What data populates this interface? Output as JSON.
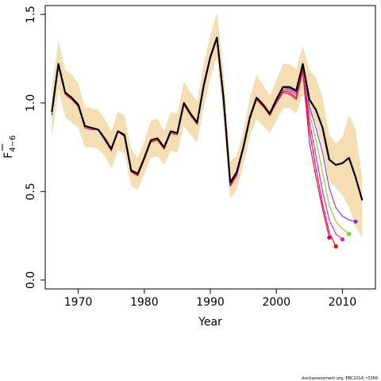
{
  "chart_data": {
    "type": "line",
    "xlabel": "Year",
    "ylabel_main": "F",
    "ylabel_sub": "4−6",
    "xlim": [
      1965,
      2015
    ],
    "ylim": [
      -0.05,
      1.55
    ],
    "x_ticks": [
      1970,
      1980,
      1990,
      2000,
      2010
    ],
    "y_ticks": [
      0.0,
      0.5,
      1.0,
      1.5
    ],
    "y_tick_labels": [
      "0.0",
      "0.5",
      "1.0",
      "1.5"
    ],
    "grid": false,
    "footer": "stockassessment.org, EBC2014, r3366",
    "band": {
      "color": "#f5deb3",
      "x": [
        1966,
        1967,
        1968,
        1969,
        1970,
        1971,
        1972,
        1973,
        1974,
        1975,
        1976,
        1977,
        1978,
        1979,
        1980,
        1981,
        1982,
        1983,
        1984,
        1985,
        1986,
        1987,
        1988,
        1989,
        1990,
        1991,
        1992,
        1993,
        1994,
        1995,
        1996,
        1997,
        1998,
        1999,
        2000,
        2001,
        2002,
        2003,
        2004,
        2005,
        2006,
        2007,
        2008,
        2009,
        2010,
        2011,
        2012,
        2013
      ],
      "upper": [
        1.08,
        1.35,
        1.19,
        1.16,
        1.11,
        0.98,
        0.97,
        0.96,
        0.91,
        0.84,
        0.95,
        0.93,
        0.74,
        0.69,
        0.78,
        0.9,
        0.91,
        0.84,
        0.95,
        0.94,
        1.12,
        1.06,
        1.01,
        1.22,
        1.38,
        1.51,
        1.18,
        0.67,
        0.7,
        0.84,
        1.03,
        1.16,
        1.1,
        1.04,
        1.13,
        1.22,
        1.22,
        1.19,
        1.32,
        1.19,
        1.14,
        1.03,
        0.82,
        0.77,
        0.81,
        0.93,
        0.85,
        0.57
      ],
      "lower": [
        0.8,
        1.08,
        0.92,
        0.89,
        0.86,
        0.75,
        0.75,
        0.74,
        0.7,
        0.63,
        0.73,
        0.72,
        0.53,
        0.51,
        0.6,
        0.69,
        0.7,
        0.65,
        0.73,
        0.72,
        0.87,
        0.82,
        0.78,
        0.98,
        1.14,
        1.26,
        0.9,
        0.46,
        0.51,
        0.65,
        0.81,
        0.91,
        0.87,
        0.83,
        0.9,
        0.97,
        0.97,
        0.94,
        1.05,
        0.94,
        0.89,
        0.76,
        0.56,
        0.52,
        0.48,
        0.41,
        0.3,
        0.24
      ]
    },
    "series": [
      {
        "color": "#000000",
        "width": 2.2,
        "end_marker": false,
        "x": [
          1966,
          1967,
          1968,
          1969,
          1970,
          1971,
          1972,
          1973,
          1974,
          1975,
          1976,
          1977,
          1978,
          1979,
          1980,
          1981,
          1982,
          1983,
          1984,
          1985,
          1986,
          1987,
          1988,
          1989,
          1990,
          1991,
          1992,
          1993,
          1994,
          1995,
          1996,
          1997,
          1998,
          1999,
          2000,
          2001,
          2002,
          2003,
          2004,
          2005,
          2006,
          2007,
          2008,
          2009,
          2010,
          2011,
          2012,
          2013
        ],
        "y": [
          0.95,
          1.22,
          1.06,
          1.03,
          0.99,
          0.87,
          0.86,
          0.85,
          0.8,
          0.74,
          0.84,
          0.82,
          0.62,
          0.6,
          0.69,
          0.79,
          0.8,
          0.75,
          0.84,
          0.83,
          1.0,
          0.94,
          0.89,
          1.1,
          1.26,
          1.37,
          1.03,
          0.55,
          0.61,
          0.75,
          0.92,
          1.03,
          0.99,
          0.94,
          1.02,
          1.09,
          1.09,
          1.07,
          1.22,
          1.02,
          0.96,
          0.86,
          0.68,
          0.65,
          0.66,
          0.69,
          0.58,
          0.45
        ]
      },
      {
        "color": "#d0006f",
        "width": 1.1,
        "end_marker": true,
        "x": [
          1966,
          1967,
          1968,
          1969,
          1970,
          1971,
          1972,
          1973,
          1974,
          1975,
          1976,
          1977,
          1978,
          1979,
          1980,
          1981,
          1982,
          1983,
          1984,
          1985,
          1986,
          1987,
          1988,
          1989,
          1990,
          1991,
          1992,
          1993,
          1994,
          1995,
          1996,
          1997,
          1998,
          1999,
          2000,
          2001,
          2002,
          2003,
          2004,
          2005,
          2006,
          2007,
          2008
        ],
        "y": [
          0.93,
          1.21,
          1.05,
          1.02,
          0.98,
          0.86,
          0.85,
          0.85,
          0.79,
          0.73,
          0.84,
          0.81,
          0.61,
          0.59,
          0.68,
          0.78,
          0.79,
          0.74,
          0.83,
          0.82,
          0.99,
          0.93,
          0.88,
          1.09,
          1.25,
          1.36,
          1.0,
          0.53,
          0.59,
          0.74,
          0.91,
          1.02,
          0.98,
          0.93,
          1.0,
          1.06,
          1.05,
          1.02,
          1.18,
          0.78,
          0.58,
          0.4,
          0.24
        ]
      },
      {
        "color": "#ff0000",
        "width": 1.1,
        "end_marker": true,
        "x": [
          1966,
          1967,
          1968,
          1969,
          1970,
          1971,
          1972,
          1973,
          1974,
          1975,
          1976,
          1977,
          1978,
          1979,
          1980,
          1981,
          1982,
          1983,
          1984,
          1985,
          1986,
          1987,
          1988,
          1989,
          1990,
          1991,
          1992,
          1993,
          1994,
          1995,
          1996,
          1997,
          1998,
          1999,
          2000,
          2001,
          2002,
          2003,
          2004,
          2005,
          2006,
          2007,
          2008,
          2009
        ],
        "y": [
          0.94,
          1.22,
          1.06,
          1.03,
          0.98,
          0.87,
          0.86,
          0.85,
          0.8,
          0.74,
          0.84,
          0.82,
          0.61,
          0.59,
          0.68,
          0.78,
          0.79,
          0.74,
          0.84,
          0.83,
          1.0,
          0.94,
          0.89,
          1.09,
          1.26,
          1.37,
          1.01,
          0.54,
          0.6,
          0.74,
          0.91,
          1.02,
          0.98,
          0.93,
          1.01,
          1.07,
          1.06,
          1.03,
          1.2,
          0.85,
          0.63,
          0.43,
          0.27,
          0.19
        ]
      },
      {
        "color": "#ff00ff",
        "width": 1.1,
        "end_marker": true,
        "x": [
          1966,
          1967,
          1968,
          1969,
          1970,
          1971,
          1972,
          1973,
          1974,
          1975,
          1976,
          1977,
          1978,
          1979,
          1980,
          1981,
          1982,
          1983,
          1984,
          1985,
          1986,
          1987,
          1988,
          1989,
          1990,
          1991,
          1992,
          1993,
          1994,
          1995,
          1996,
          1997,
          1998,
          1999,
          2000,
          2001,
          2002,
          2003,
          2004,
          2005,
          2006,
          2007,
          2008,
          2009,
          2010
        ],
        "y": [
          0.94,
          1.22,
          1.06,
          1.03,
          0.99,
          0.87,
          0.86,
          0.85,
          0.8,
          0.74,
          0.84,
          0.82,
          0.62,
          0.6,
          0.69,
          0.79,
          0.8,
          0.75,
          0.84,
          0.83,
          1.0,
          0.94,
          0.89,
          1.1,
          1.26,
          1.37,
          1.02,
          0.55,
          0.6,
          0.75,
          0.92,
          1.03,
          0.99,
          0.94,
          1.01,
          1.08,
          1.07,
          1.05,
          1.21,
          0.9,
          0.7,
          0.5,
          0.34,
          0.26,
          0.23
        ]
      },
      {
        "color": "#7fd11a",
        "width": 1.1,
        "end_marker": true,
        "x": [
          1966,
          1967,
          1968,
          1969,
          1970,
          1971,
          1972,
          1973,
          1974,
          1975,
          1976,
          1977,
          1978,
          1979,
          1980,
          1981,
          1982,
          1983,
          1984,
          1985,
          1986,
          1987,
          1988,
          1989,
          1990,
          1991,
          1992,
          1993,
          1994,
          1995,
          1996,
          1997,
          1998,
          1999,
          2000,
          2001,
          2002,
          2003,
          2004,
          2005,
          2006,
          2007,
          2008,
          2009,
          2010,
          2011
        ],
        "y": [
          0.95,
          1.22,
          1.06,
          1.03,
          0.99,
          0.87,
          0.86,
          0.85,
          0.8,
          0.74,
          0.84,
          0.82,
          0.62,
          0.6,
          0.69,
          0.79,
          0.8,
          0.75,
          0.84,
          0.83,
          1.0,
          0.94,
          0.89,
          1.1,
          1.26,
          1.37,
          1.03,
          0.55,
          0.61,
          0.75,
          0.92,
          1.03,
          0.99,
          0.94,
          1.02,
          1.08,
          1.08,
          1.06,
          1.21,
          0.95,
          0.79,
          0.61,
          0.42,
          0.33,
          0.29,
          0.26
        ]
      },
      {
        "color": "#8a2be2",
        "width": 1.1,
        "end_marker": true,
        "x": [
          1966,
          1967,
          1968,
          1969,
          1970,
          1971,
          1972,
          1973,
          1974,
          1975,
          1976,
          1977,
          1978,
          1979,
          1980,
          1981,
          1982,
          1983,
          1984,
          1985,
          1986,
          1987,
          1988,
          1989,
          1990,
          1991,
          1992,
          1993,
          1994,
          1995,
          1996,
          1997,
          1998,
          1999,
          2000,
          2001,
          2002,
          2003,
          2004,
          2005,
          2006,
          2007,
          2008,
          2009,
          2010,
          2011,
          2012
        ],
        "y": [
          0.95,
          1.22,
          1.06,
          1.03,
          0.99,
          0.87,
          0.86,
          0.85,
          0.8,
          0.74,
          0.84,
          0.82,
          0.62,
          0.6,
          0.69,
          0.79,
          0.8,
          0.75,
          0.84,
          0.83,
          1.0,
          0.94,
          0.89,
          1.1,
          1.26,
          1.37,
          1.03,
          0.55,
          0.61,
          0.75,
          0.92,
          1.03,
          0.99,
          0.94,
          1.02,
          1.09,
          1.08,
          1.06,
          1.22,
          0.98,
          0.86,
          0.72,
          0.52,
          0.41,
          0.36,
          0.34,
          0.33
        ]
      }
    ]
  }
}
